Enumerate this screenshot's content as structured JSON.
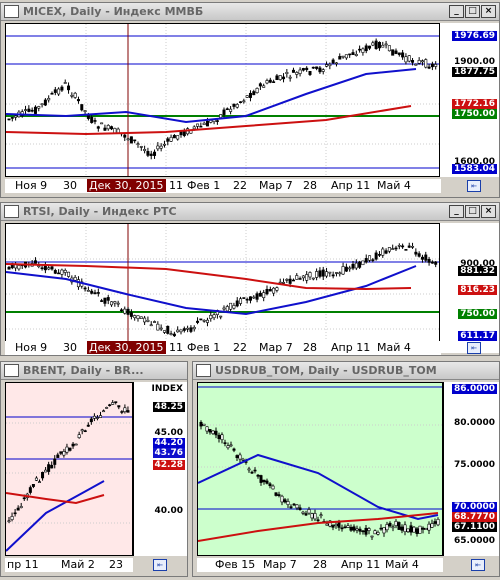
{
  "windows": {
    "micex": {
      "title": "MICEX, Daily - Индекс ММВБ",
      "price_labels": [
        "1976.69",
        "1900.00",
        "1877.75",
        "1772.16",
        "1750.00",
        "1600.00",
        "1583.04"
      ],
      "x_labels": [
        "Ноя 9",
        "30",
        "Дек 30, 2015",
        "11",
        "Фев 1",
        "22",
        "Мар 7",
        "28",
        "Апр 11",
        "Май 4"
      ]
    },
    "rtsi": {
      "title": "RTSI, Daily - Индекс РТС",
      "price_labels": [
        "900.00",
        "881.32",
        "816.23",
        "750.00",
        "611.17"
      ],
      "x_labels": [
        "Ноя 9",
        "30",
        "Дек 30, 2015",
        "11",
        "Фев 1",
        "22",
        "Мар 7",
        "28",
        "Апр 11",
        "Май 4"
      ]
    },
    "brent": {
      "title": "BRENT, Daily - BR...",
      "index_label": "INDEX",
      "price_labels": [
        "48.25",
        "45.00",
        "44.20",
        "43.76",
        "42.28",
        "40.00"
      ],
      "x_labels": [
        "пр 11",
        "Май 2",
        "23"
      ]
    },
    "usdrub": {
      "title": "USDRUB_TOM, Daily - USDRUB_TOM",
      "price_labels": [
        "86.0000",
        "80.0000",
        "75.0000",
        "70.0000",
        "68.7770",
        "67.1100",
        "65.0000"
      ],
      "x_labels": [
        "Фев 15",
        "Мар 7",
        "28",
        "Апр 11",
        "Май 4"
      ]
    }
  },
  "buttons": {
    "minimize": "_",
    "maximize": "□",
    "close": "×"
  },
  "colors": {
    "blue_ma": "#1010cc",
    "red_ma": "#cc1010",
    "green_line": "#008000",
    "brent_bg": "#ffe8e8",
    "usd_bg": "#ccffcc"
  }
}
